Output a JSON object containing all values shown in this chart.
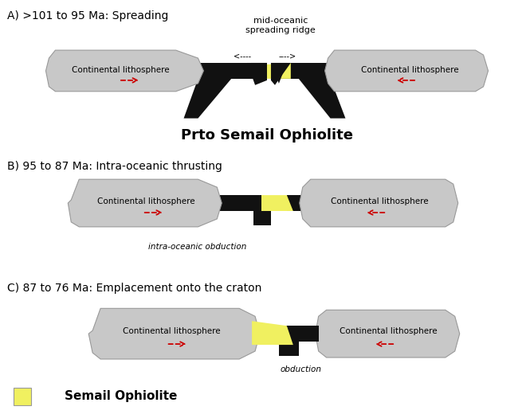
{
  "title_a": "A) >101 to 95 Ma: Spreading",
  "title_b": "B) 95 to 87 Ma: Intra-oceanic thrusting",
  "title_c": "C) 87 to 76 Ma: Emplacement onto the craton",
  "label_ridge": "mid-oceanic\nspreading ridge",
  "label_proto": "Prto Semail Ophiolite",
  "label_intra": "intra-oceanic obduction",
  "label_obduction": "obduction",
  "label_legend": "Semail Ophiolite",
  "label_continental": "Continental lithosphere",
  "bg_color": "#ffffff",
  "gray_color": "#c8c8c8",
  "black_color": "#111111",
  "yellow_color": "#f0f060",
  "red_color": "#cc0000",
  "font_size_title": 10,
  "font_size_small": 8,
  "font_size_proto": 13
}
